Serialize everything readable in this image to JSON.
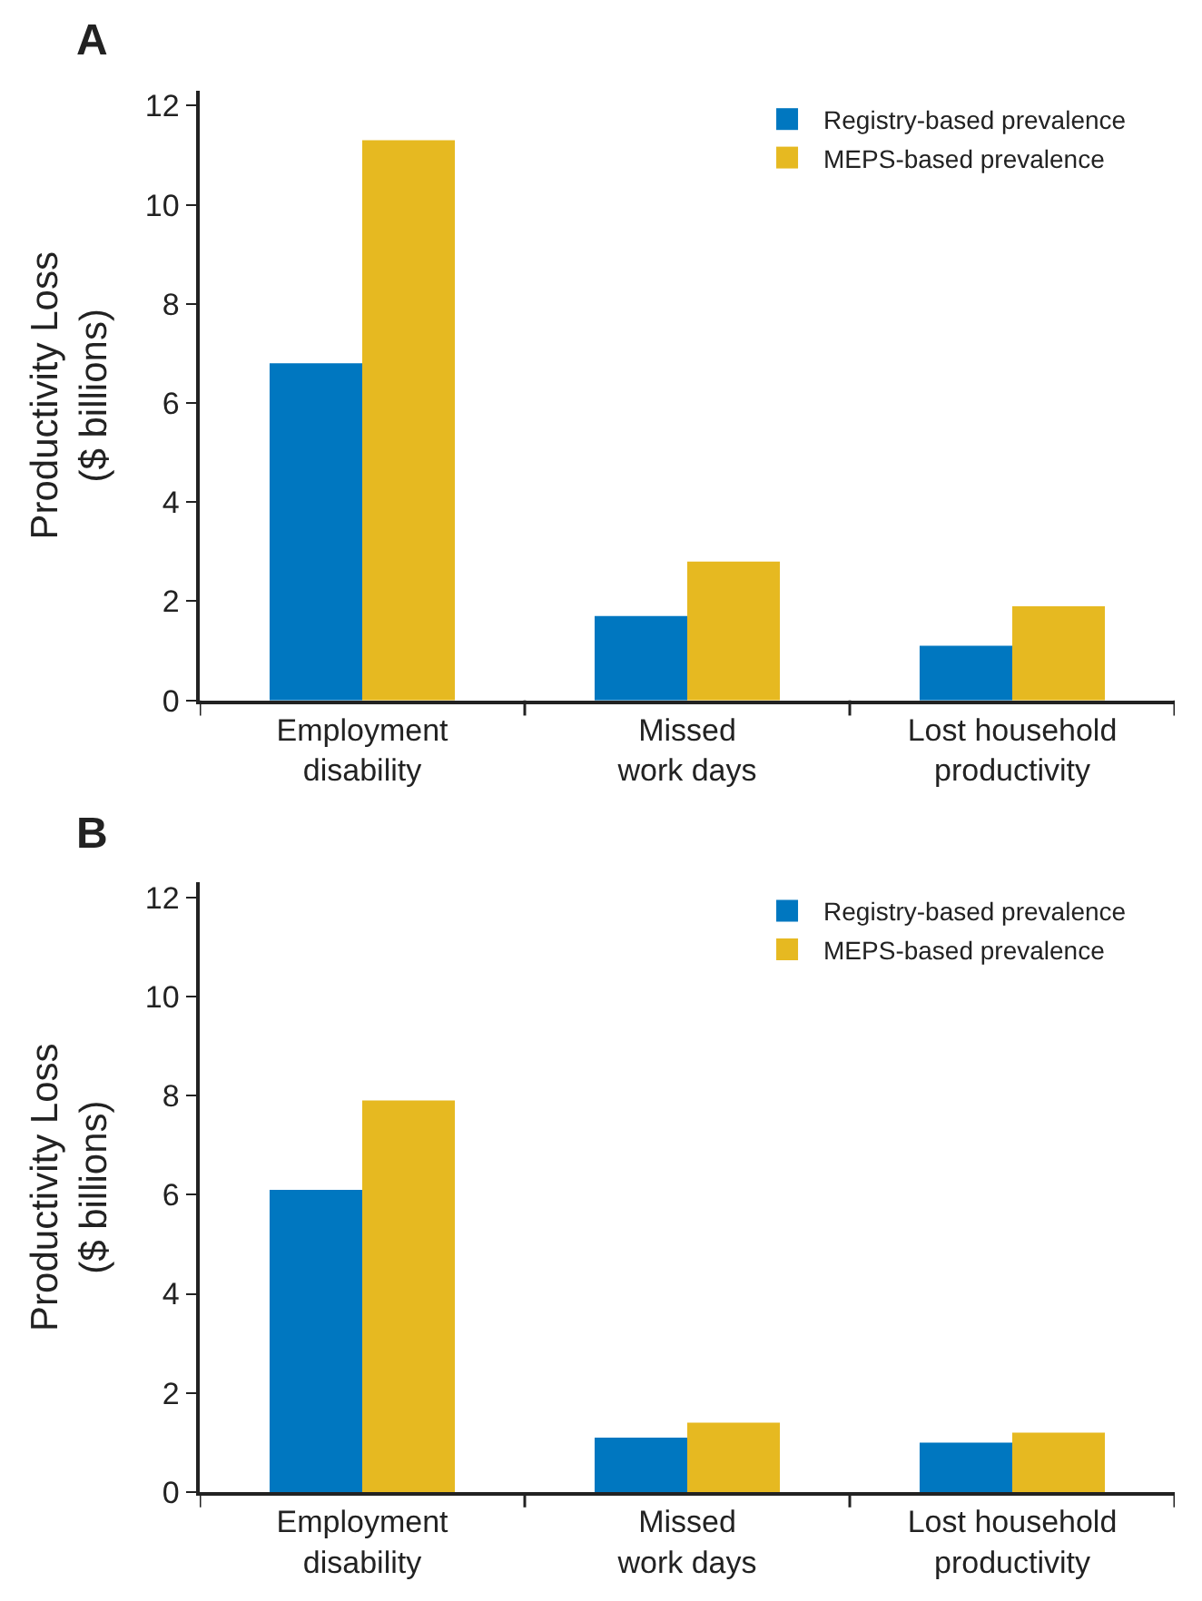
{
  "chart_data": [
    {
      "type": "bar",
      "title": "A",
      "ylabel": "Productivity Loss\n($ billions)",
      "categories": [
        "Employment\ndisability",
        "Missed\nwork days",
        "Lost household\nproductivity"
      ],
      "series": [
        {
          "name": "Registry-based prevalence",
          "color": "#0077c0",
          "values": [
            6.8,
            1.7,
            1.1
          ]
        },
        {
          "name": "MEPS-based prevalence",
          "color": "#e6b921",
          "values": [
            11.3,
            2.8,
            1.9
          ]
        }
      ],
      "ylim": [
        0,
        12.3
      ],
      "yticks": [
        0,
        2,
        4,
        6,
        8,
        10,
        12
      ],
      "legend": "top right"
    },
    {
      "type": "bar",
      "title": "B",
      "ylabel": "Productivity Loss\n($ billions)",
      "categories": [
        "Employment\ndisability",
        "Missed\nwork days",
        "Lost household\nproductivity"
      ],
      "series": [
        {
          "name": "Registry-based prevalence",
          "color": "#0077c0",
          "values": [
            6.1,
            1.1,
            1.0
          ]
        },
        {
          "name": "MEPS-based prevalence",
          "color": "#e6b921",
          "values": [
            7.9,
            1.4,
            1.2
          ]
        }
      ],
      "ylim": [
        0,
        12.3
      ],
      "yticks": [
        0,
        2,
        4,
        6,
        8,
        10,
        12
      ],
      "legend": "top right"
    }
  ]
}
